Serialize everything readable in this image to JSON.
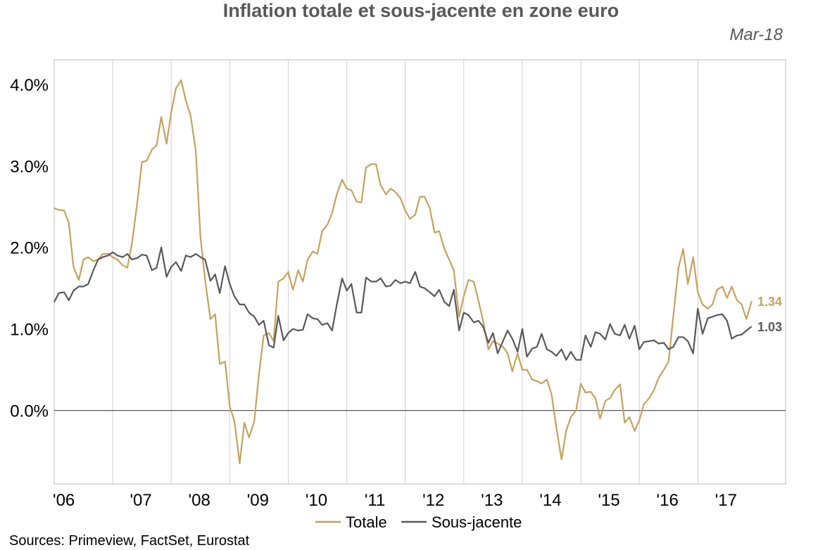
{
  "chart_data": {
    "type": "line",
    "title": "Inflation totale et sous-jacente en zone euro",
    "date_label": "Mar-18",
    "source": "Sources: Primeview, FactSet, Eurostat",
    "x_tick_labels": [
      "'06",
      "'07",
      "'08",
      "'09",
      "'10",
      "'11",
      "'12",
      "'13",
      "'14",
      "'15",
      "'16",
      "'17"
    ],
    "x_tick_years": [
      2006,
      2007,
      2008,
      2009,
      2010,
      2011,
      2012,
      2013,
      2014,
      2015,
      2016,
      2017
    ],
    "x_range": [
      2006.0,
      2018.5
    ],
    "y_ticks": [
      0,
      1,
      2,
      3,
      4
    ],
    "y_tick_labels": [
      "0.0%",
      "1.0%",
      "2.0%",
      "3.0%",
      "4.0%"
    ],
    "ylim": [
      -0.9,
      4.3
    ],
    "grid": "vertical",
    "legend_position": "bottom",
    "series": [
      {
        "name": "Totale",
        "color": "#c4a35e",
        "end_label": "1.34",
        "points": [
          [
            2006.0,
            2.48
          ],
          [
            2006.08,
            2.46
          ],
          [
            2006.17,
            2.45
          ],
          [
            2006.25,
            2.3
          ],
          [
            2006.33,
            1.76
          ],
          [
            2006.42,
            1.6
          ],
          [
            2006.5,
            1.85
          ],
          [
            2006.58,
            1.88
          ],
          [
            2006.67,
            1.83
          ],
          [
            2006.75,
            1.85
          ],
          [
            2006.83,
            1.92
          ],
          [
            2006.92,
            1.92
          ],
          [
            2007.0,
            1.88
          ],
          [
            2007.08,
            1.85
          ],
          [
            2007.17,
            1.78
          ],
          [
            2007.25,
            1.75
          ],
          [
            2007.33,
            2.05
          ],
          [
            2007.42,
            2.55
          ],
          [
            2007.5,
            3.05
          ],
          [
            2007.58,
            3.06
          ],
          [
            2007.67,
            3.2
          ],
          [
            2007.75,
            3.25
          ],
          [
            2007.83,
            3.6
          ],
          [
            2007.92,
            3.27
          ],
          [
            2008.0,
            3.65
          ],
          [
            2008.08,
            3.95
          ],
          [
            2008.17,
            4.05
          ],
          [
            2008.25,
            3.8
          ],
          [
            2008.33,
            3.62
          ],
          [
            2008.42,
            3.18
          ],
          [
            2008.5,
            2.12
          ],
          [
            2008.58,
            1.6
          ],
          [
            2008.67,
            1.12
          ],
          [
            2008.75,
            1.18
          ],
          [
            2008.83,
            0.57
          ],
          [
            2008.92,
            0.6
          ],
          [
            2009.0,
            0.05
          ],
          [
            2009.08,
            -0.13
          ],
          [
            2009.17,
            -0.65
          ],
          [
            2009.25,
            -0.15
          ],
          [
            2009.33,
            -0.33
          ],
          [
            2009.42,
            -0.13
          ],
          [
            2009.5,
            0.45
          ],
          [
            2009.58,
            0.92
          ],
          [
            2009.67,
            0.95
          ],
          [
            2009.75,
            0.85
          ],
          [
            2009.83,
            1.58
          ],
          [
            2009.92,
            1.62
          ],
          [
            2010.0,
            1.7
          ],
          [
            2010.08,
            1.48
          ],
          [
            2010.17,
            1.72
          ],
          [
            2010.25,
            1.58
          ],
          [
            2010.33,
            1.85
          ],
          [
            2010.42,
            1.95
          ],
          [
            2010.5,
            1.92
          ],
          [
            2010.58,
            2.2
          ],
          [
            2010.67,
            2.28
          ],
          [
            2010.75,
            2.42
          ],
          [
            2010.83,
            2.65
          ],
          [
            2010.92,
            2.83
          ],
          [
            2011.0,
            2.72
          ],
          [
            2011.08,
            2.7
          ],
          [
            2011.17,
            2.56
          ],
          [
            2011.25,
            2.55
          ],
          [
            2011.33,
            2.98
          ],
          [
            2011.42,
            3.02
          ],
          [
            2011.5,
            3.02
          ],
          [
            2011.58,
            2.76
          ],
          [
            2011.67,
            2.65
          ],
          [
            2011.75,
            2.72
          ],
          [
            2011.83,
            2.68
          ],
          [
            2011.92,
            2.6
          ],
          [
            2012.0,
            2.45
          ],
          [
            2012.08,
            2.35
          ],
          [
            2012.17,
            2.4
          ],
          [
            2012.25,
            2.62
          ],
          [
            2012.33,
            2.62
          ],
          [
            2012.42,
            2.48
          ],
          [
            2012.5,
            2.18
          ],
          [
            2012.58,
            2.2
          ],
          [
            2012.67,
            1.98
          ],
          [
            2012.75,
            1.85
          ],
          [
            2012.83,
            1.72
          ],
          [
            2012.92,
            1.15
          ],
          [
            2013.0,
            1.4
          ],
          [
            2013.08,
            1.6
          ],
          [
            2013.17,
            1.58
          ],
          [
            2013.25,
            1.35
          ],
          [
            2013.33,
            1.1
          ],
          [
            2013.42,
            0.75
          ],
          [
            2013.5,
            0.85
          ],
          [
            2013.58,
            0.82
          ],
          [
            2013.67,
            0.78
          ],
          [
            2013.75,
            0.7
          ],
          [
            2013.83,
            0.48
          ],
          [
            2013.92,
            0.7
          ],
          [
            2014.0,
            0.5
          ],
          [
            2014.08,
            0.5
          ],
          [
            2014.17,
            0.38
          ],
          [
            2014.25,
            0.36
          ],
          [
            2014.33,
            0.33
          ],
          [
            2014.42,
            0.38
          ],
          [
            2014.5,
            0.2
          ],
          [
            2014.58,
            -0.2
          ],
          [
            2014.67,
            -0.6
          ],
          [
            2014.75,
            -0.25
          ],
          [
            2014.83,
            -0.08
          ],
          [
            2014.92,
            0.0
          ],
          [
            2015.0,
            0.33
          ],
          [
            2015.08,
            0.22
          ],
          [
            2015.17,
            0.23
          ],
          [
            2015.25,
            0.15
          ],
          [
            2015.33,
            -0.1
          ],
          [
            2015.42,
            0.12
          ],
          [
            2015.5,
            0.15
          ],
          [
            2015.58,
            0.25
          ],
          [
            2015.67,
            0.32
          ],
          [
            2015.75,
            -0.15
          ],
          [
            2015.83,
            -0.08
          ],
          [
            2015.92,
            -0.25
          ],
          [
            2016.0,
            -0.12
          ],
          [
            2016.08,
            0.08
          ],
          [
            2016.17,
            0.15
          ],
          [
            2016.25,
            0.25
          ],
          [
            2016.33,
            0.4
          ],
          [
            2016.42,
            0.5
          ],
          [
            2016.5,
            0.6
          ],
          [
            2016.58,
            1.15
          ],
          [
            2016.67,
            1.75
          ],
          [
            2016.75,
            1.98
          ],
          [
            2016.83,
            1.55
          ],
          [
            2016.92,
            1.88
          ],
          [
            2017.0,
            1.45
          ],
          [
            2017.08,
            1.3
          ],
          [
            2017.17,
            1.25
          ],
          [
            2017.25,
            1.3
          ],
          [
            2017.33,
            1.48
          ],
          [
            2017.42,
            1.52
          ],
          [
            2017.5,
            1.38
          ],
          [
            2017.58,
            1.52
          ],
          [
            2017.67,
            1.35
          ],
          [
            2017.75,
            1.3
          ],
          [
            2017.83,
            1.12
          ],
          [
            2017.92,
            1.34
          ]
        ]
      },
      {
        "name": "Sous-jacente",
        "color": "#595959",
        "end_label": "1.03",
        "points": [
          [
            2006.0,
            1.33
          ],
          [
            2006.08,
            1.44
          ],
          [
            2006.17,
            1.45
          ],
          [
            2006.25,
            1.35
          ],
          [
            2006.33,
            1.47
          ],
          [
            2006.42,
            1.52
          ],
          [
            2006.5,
            1.52
          ],
          [
            2006.58,
            1.55
          ],
          [
            2006.67,
            1.72
          ],
          [
            2006.75,
            1.85
          ],
          [
            2006.83,
            1.88
          ],
          [
            2006.92,
            1.9
          ],
          [
            2007.0,
            1.94
          ],
          [
            2007.08,
            1.9
          ],
          [
            2007.17,
            1.88
          ],
          [
            2007.25,
            1.92
          ],
          [
            2007.33,
            1.85
          ],
          [
            2007.42,
            1.87
          ],
          [
            2007.5,
            1.91
          ],
          [
            2007.58,
            1.9
          ],
          [
            2007.67,
            1.72
          ],
          [
            2007.75,
            1.75
          ],
          [
            2007.83,
            2.0
          ],
          [
            2007.92,
            1.64
          ],
          [
            2008.0,
            1.76
          ],
          [
            2008.08,
            1.82
          ],
          [
            2008.17,
            1.71
          ],
          [
            2008.25,
            1.9
          ],
          [
            2008.33,
            1.88
          ],
          [
            2008.42,
            1.92
          ],
          [
            2008.5,
            1.88
          ],
          [
            2008.58,
            1.85
          ],
          [
            2008.67,
            1.59
          ],
          [
            2008.75,
            1.67
          ],
          [
            2008.83,
            1.44
          ],
          [
            2008.92,
            1.77
          ],
          [
            2009.0,
            1.55
          ],
          [
            2009.08,
            1.4
          ],
          [
            2009.17,
            1.3
          ],
          [
            2009.25,
            1.3
          ],
          [
            2009.33,
            1.2
          ],
          [
            2009.42,
            1.15
          ],
          [
            2009.5,
            1.05
          ],
          [
            2009.58,
            1.1
          ],
          [
            2009.67,
            0.8
          ],
          [
            2009.75,
            0.77
          ],
          [
            2009.83,
            1.16
          ],
          [
            2009.92,
            0.86
          ],
          [
            2010.0,
            0.95
          ],
          [
            2010.08,
            1.0
          ],
          [
            2010.17,
            0.98
          ],
          [
            2010.25,
            0.99
          ],
          [
            2010.33,
            1.18
          ],
          [
            2010.42,
            1.13
          ],
          [
            2010.5,
            1.12
          ],
          [
            2010.58,
            1.05
          ],
          [
            2010.67,
            1.07
          ],
          [
            2010.75,
            0.98
          ],
          [
            2010.83,
            1.3
          ],
          [
            2010.92,
            1.62
          ],
          [
            2011.0,
            1.47
          ],
          [
            2011.08,
            1.55
          ],
          [
            2011.17,
            1.2
          ],
          [
            2011.25,
            1.2
          ],
          [
            2011.33,
            1.63
          ],
          [
            2011.42,
            1.58
          ],
          [
            2011.5,
            1.58
          ],
          [
            2011.58,
            1.62
          ],
          [
            2011.67,
            1.52
          ],
          [
            2011.75,
            1.53
          ],
          [
            2011.83,
            1.6
          ],
          [
            2011.92,
            1.56
          ],
          [
            2012.0,
            1.58
          ],
          [
            2012.08,
            1.56
          ],
          [
            2012.17,
            1.7
          ],
          [
            2012.25,
            1.52
          ],
          [
            2012.33,
            1.5
          ],
          [
            2012.42,
            1.45
          ],
          [
            2012.5,
            1.4
          ],
          [
            2012.58,
            1.48
          ],
          [
            2012.67,
            1.33
          ],
          [
            2012.75,
            1.28
          ],
          [
            2012.83,
            1.48
          ],
          [
            2012.92,
            0.98
          ],
          [
            2013.0,
            1.2
          ],
          [
            2013.08,
            1.17
          ],
          [
            2013.17,
            1.08
          ],
          [
            2013.25,
            1.1
          ],
          [
            2013.33,
            1.03
          ],
          [
            2013.42,
            0.83
          ],
          [
            2013.5,
            0.95
          ],
          [
            2013.58,
            0.7
          ],
          [
            2013.67,
            0.85
          ],
          [
            2013.75,
            0.98
          ],
          [
            2013.83,
            0.88
          ],
          [
            2013.92,
            0.72
          ],
          [
            2014.0,
            1.0
          ],
          [
            2014.08,
            0.66
          ],
          [
            2014.17,
            0.76
          ],
          [
            2014.25,
            0.78
          ],
          [
            2014.33,
            0.94
          ],
          [
            2014.42,
            0.75
          ],
          [
            2014.5,
            0.72
          ],
          [
            2014.58,
            0.67
          ],
          [
            2014.67,
            0.75
          ],
          [
            2014.75,
            0.62
          ],
          [
            2014.83,
            0.72
          ],
          [
            2014.92,
            0.62
          ],
          [
            2015.0,
            0.62
          ],
          [
            2015.08,
            0.92
          ],
          [
            2015.17,
            0.78
          ],
          [
            2015.25,
            0.96
          ],
          [
            2015.33,
            0.94
          ],
          [
            2015.42,
            0.87
          ],
          [
            2015.5,
            1.06
          ],
          [
            2015.58,
            0.94
          ],
          [
            2015.67,
            0.92
          ],
          [
            2015.75,
            1.05
          ],
          [
            2015.83,
            0.88
          ],
          [
            2015.92,
            1.04
          ],
          [
            2016.0,
            0.75
          ],
          [
            2016.08,
            0.84
          ],
          [
            2016.17,
            0.85
          ],
          [
            2016.25,
            0.86
          ],
          [
            2016.33,
            0.82
          ],
          [
            2016.42,
            0.83
          ],
          [
            2016.5,
            0.75
          ],
          [
            2016.58,
            0.78
          ],
          [
            2016.67,
            0.9
          ],
          [
            2016.75,
            0.9
          ],
          [
            2016.83,
            0.85
          ],
          [
            2016.92,
            0.7
          ],
          [
            2017.0,
            1.25
          ],
          [
            2017.08,
            0.94
          ],
          [
            2017.17,
            1.13
          ],
          [
            2017.25,
            1.15
          ],
          [
            2017.33,
            1.17
          ],
          [
            2017.42,
            1.18
          ],
          [
            2017.5,
            1.1
          ],
          [
            2017.58,
            0.88
          ],
          [
            2017.67,
            0.92
          ],
          [
            2017.75,
            0.93
          ],
          [
            2017.83,
            0.98
          ],
          [
            2017.92,
            1.03
          ]
        ]
      }
    ]
  }
}
